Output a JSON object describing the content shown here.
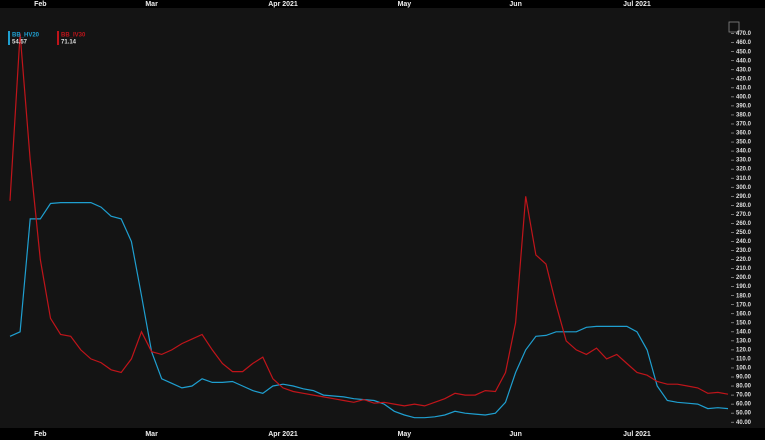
{
  "chart_data": {
    "type": "line",
    "categories": [
      null,
      null,
      null,
      "Feb",
      null,
      null,
      null,
      null,
      null,
      null,
      null,
      null,
      null,
      null,
      "Mar",
      null,
      null,
      null,
      null,
      null,
      null,
      null,
      null,
      null,
      null,
      null,
      null,
      "Apr 2021",
      null,
      null,
      null,
      null,
      null,
      null,
      null,
      null,
      null,
      null,
      null,
      "May",
      null,
      null,
      null,
      null,
      null,
      null,
      null,
      null,
      null,
      null,
      "Jun",
      null,
      null,
      null,
      null,
      null,
      null,
      null,
      null,
      null,
      null,
      null,
      "Jul 2021",
      null,
      null,
      null,
      null,
      null,
      null,
      null,
      null,
      null
    ],
    "series": [
      {
        "name": "BB_HV20",
        "color": "#1f9fd0",
        "last_value": 54.57,
        "values": [
          135,
          140,
          265,
          265,
          282,
          283,
          283,
          283,
          283,
          278,
          268,
          265,
          240,
          180,
          118,
          88,
          83,
          78,
          80,
          88,
          84,
          84,
          85,
          80,
          75,
          72,
          80,
          82,
          80,
          77,
          75,
          70,
          69,
          68,
          66,
          65,
          64,
          60,
          52,
          48,
          45,
          45,
          46,
          48,
          52,
          50,
          49,
          48,
          50,
          62,
          95,
          120,
          135,
          136,
          140,
          140,
          140,
          145,
          146,
          146,
          146,
          146,
          140,
          120,
          80,
          64,
          62,
          61,
          60,
          55,
          56,
          55
        ]
      },
      {
        "name": "BB_IV30",
        "color": "#c0141a",
        "last_value": 71.14,
        "values": [
          285,
          470,
          330,
          220,
          155,
          137,
          135,
          120,
          110,
          106,
          98,
          95,
          110,
          140,
          118,
          115,
          120,
          127,
          132,
          137,
          120,
          105,
          96,
          96,
          105,
          112,
          88,
          78,
          74,
          72,
          70,
          68,
          66,
          64,
          62,
          65,
          61,
          62,
          60,
          58,
          60,
          58,
          62,
          66,
          72,
          70,
          70,
          75,
          74,
          95,
          150,
          290,
          225,
          215,
          170,
          130,
          120,
          115,
          122,
          110,
          115,
          105,
          95,
          92,
          85,
          82,
          82,
          80,
          78,
          72,
          73,
          71
        ]
      }
    ],
    "ylim": [
      38,
      474
    ],
    "yticks": [
      {
        "value": 40,
        "label": "40.00"
      },
      {
        "value": 50,
        "label": "50.00"
      },
      {
        "value": 60,
        "label": "60.00"
      },
      {
        "value": 70,
        "label": "70.00"
      },
      {
        "value": 80,
        "label": "80.00"
      },
      {
        "value": 90,
        "label": "90.00"
      },
      {
        "value": 100,
        "label": "100.0"
      },
      {
        "value": 110,
        "label": "110.0"
      },
      {
        "value": 120,
        "label": "120.0"
      },
      {
        "value": 130,
        "label": "130.0"
      },
      {
        "value": 140,
        "label": "140.0"
      },
      {
        "value": 150,
        "label": "150.0"
      },
      {
        "value": 160,
        "label": "160.0"
      },
      {
        "value": 170,
        "label": "170.0"
      },
      {
        "value": 180,
        "label": "180.0"
      },
      {
        "value": 190,
        "label": "190.0"
      },
      {
        "value": 200,
        "label": "200.0"
      },
      {
        "value": 210,
        "label": "210.0"
      },
      {
        "value": 220,
        "label": "220.0"
      },
      {
        "value": 230,
        "label": "230.0"
      },
      {
        "value": 240,
        "label": "240.0"
      },
      {
        "value": 250,
        "label": "250.0"
      },
      {
        "value": 260,
        "label": "260.0"
      },
      {
        "value": 270,
        "label": "270.0"
      },
      {
        "value": 280,
        "label": "280.0"
      },
      {
        "value": 290,
        "label": "290.0"
      },
      {
        "value": 300,
        "label": "300.0"
      },
      {
        "value": 310,
        "label": "310.0"
      },
      {
        "value": 320,
        "label": "320.0"
      },
      {
        "value": 330,
        "label": "330.0"
      },
      {
        "value": 340,
        "label": "340.0"
      },
      {
        "value": 350,
        "label": "350.0"
      },
      {
        "value": 360,
        "label": "360.0"
      },
      {
        "value": 370,
        "label": "370.0"
      },
      {
        "value": 380,
        "label": "380.0"
      },
      {
        "value": 390,
        "label": "390.0"
      },
      {
        "value": 400,
        "label": "400.0"
      },
      {
        "value": 410,
        "label": "410.0"
      },
      {
        "value": 420,
        "label": "420.0"
      },
      {
        "value": 430,
        "label": "430.0"
      },
      {
        "value": 440,
        "label": "440.0"
      },
      {
        "value": 450,
        "label": "450.0"
      },
      {
        "value": 460,
        "label": "460.0"
      },
      {
        "value": 470,
        "label": "470.0"
      }
    ],
    "grid": false
  }
}
